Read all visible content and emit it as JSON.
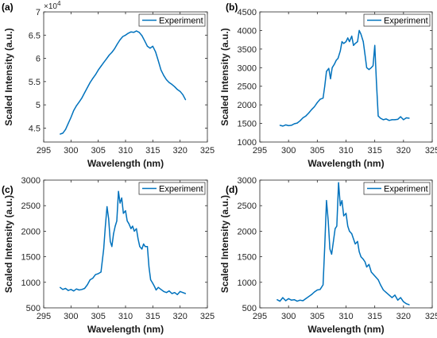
{
  "colors": {
    "series": "#0072BD",
    "axis": "#262626",
    "background": "#ffffff"
  },
  "chart_data": [
    {
      "type": "line",
      "panel_label": "(a)",
      "xlabel": "Wavelength (nm)",
      "ylabel": "Scaled Intensity (a.u.)",
      "xlim": [
        295,
        325
      ],
      "ylim": [
        42000,
        70000
      ],
      "xticks": [
        "295",
        "300",
        "305",
        "310",
        "315",
        "320",
        "325"
      ],
      "yticks": [
        {
          "value": 45000,
          "label": "4.5"
        },
        {
          "value": 50000,
          "label": "5"
        },
        {
          "value": 55000,
          "label": "5.5"
        },
        {
          "value": 60000,
          "label": "6"
        },
        {
          "value": 65000,
          "label": "6.5"
        },
        {
          "value": 70000,
          "label": "7"
        }
      ],
      "y_exponent": "×10",
      "y_exponent_power": "4",
      "legend": {
        "position": "top-right",
        "entries": [
          "Experiment"
        ]
      },
      "series": [
        {
          "name": "Experiment",
          "x": [
            298.0,
            298.5,
            299.0,
            299.5,
            300.0,
            300.5,
            301.0,
            301.5,
            302.0,
            302.5,
            303.0,
            303.5,
            304.0,
            304.5,
            305.0,
            305.5,
            306.0,
            306.5,
            307.0,
            307.5,
            308.0,
            308.5,
            309.0,
            309.5,
            310.0,
            310.5,
            311.0,
            311.5,
            312.0,
            312.5,
            313.0,
            313.5,
            314.0,
            314.5,
            315.0,
            315.5,
            316.0,
            316.5,
            317.0,
            317.5,
            318.0,
            318.5,
            319.0,
            319.5,
            320.0,
            320.5,
            321.0
          ],
          "y": [
            43700,
            43900,
            44700,
            46000,
            47300,
            48800,
            49800,
            50600,
            51500,
            52600,
            53700,
            54800,
            55700,
            56500,
            57500,
            58300,
            59100,
            59900,
            60700,
            61300,
            62100,
            63100,
            64000,
            64700,
            65000,
            65400,
            65700,
            65600,
            65900,
            65600,
            64900,
            63800,
            62600,
            62200,
            62600,
            61400,
            59500,
            57500,
            56300,
            55400,
            54800,
            54400,
            53900,
            53300,
            52900,
            52200,
            51100
          ]
        }
      ]
    },
    {
      "type": "line",
      "panel_label": "(b)",
      "xlabel": "Wavelength (nm)",
      "ylabel": "Scaled Intensity (a.u.)",
      "xlim": [
        295,
        325
      ],
      "ylim": [
        1000,
        4500
      ],
      "xticks": [
        "295",
        "300",
        "305",
        "310",
        "315",
        "320",
        "325"
      ],
      "yticks": [
        "1000",
        "1500",
        "2000",
        "2500",
        "3000",
        "3500",
        "4000",
        "4500"
      ],
      "legend": {
        "position": "top-right",
        "entries": [
          "Experiment"
        ]
      },
      "series": [
        {
          "name": "Experiment",
          "x": [
            298.5,
            299.0,
            299.5,
            300.0,
            300.5,
            301.0,
            301.5,
            302.0,
            302.5,
            303.0,
            303.5,
            304.0,
            304.5,
            305.0,
            305.5,
            306.0,
            306.3,
            306.6,
            307.0,
            307.3,
            307.6,
            308.0,
            308.3,
            308.6,
            309.0,
            309.3,
            309.6,
            310.0,
            310.3,
            310.6,
            311.0,
            311.3,
            311.6,
            312.0,
            312.3,
            312.6,
            313.0,
            313.3,
            313.6,
            314.0,
            314.4,
            314.7,
            315.0,
            315.3,
            315.6,
            316.0,
            316.5,
            317.0,
            317.5,
            318.0,
            318.5,
            319.0,
            319.5,
            320.0,
            320.5,
            321.0
          ],
          "y": [
            1450,
            1430,
            1460,
            1440,
            1450,
            1490,
            1510,
            1570,
            1650,
            1700,
            1780,
            1870,
            1950,
            2060,
            2150,
            2180,
            2500,
            2900,
            2980,
            2700,
            3000,
            3100,
            3200,
            3250,
            3450,
            3700,
            3650,
            3700,
            3800,
            3700,
            3850,
            3600,
            3650,
            3700,
            4000,
            3900,
            3700,
            3350,
            3000,
            2950,
            3000,
            3050,
            3600,
            2600,
            1700,
            1640,
            1600,
            1620,
            1580,
            1600,
            1600,
            1610,
            1680,
            1600,
            1650,
            1640
          ]
        }
      ]
    },
    {
      "type": "line",
      "panel_label": "(c)",
      "xlabel": "Wavelength (nm)",
      "ylabel": "Scaled Intensity (a.u.)",
      "xlim": [
        295,
        325
      ],
      "ylim": [
        500,
        3000
      ],
      "xticks": [
        "295",
        "300",
        "305",
        "310",
        "315",
        "320",
        "325"
      ],
      "yticks": [
        "500",
        "1000",
        "1500",
        "2000",
        "2500",
        "3000"
      ],
      "legend": {
        "position": "top-right",
        "entries": [
          "Experiment"
        ]
      },
      "series": [
        {
          "name": "Experiment",
          "x": [
            298.0,
            298.5,
            299.0,
            299.5,
            300.0,
            300.5,
            301.0,
            301.5,
            302.0,
            302.5,
            303.0,
            303.5,
            304.0,
            304.5,
            305.0,
            305.5,
            306.0,
            306.3,
            306.6,
            306.9,
            307.2,
            307.5,
            307.8,
            308.1,
            308.4,
            308.7,
            309.0,
            309.3,
            309.6,
            310.0,
            310.3,
            310.6,
            311.0,
            311.3,
            311.6,
            312.0,
            312.3,
            312.6,
            313.0,
            313.3,
            313.6,
            314.0,
            314.3,
            314.6,
            315.0,
            315.3,
            315.6,
            316.0,
            316.5,
            317.0,
            317.5,
            318.0,
            318.5,
            319.0,
            319.5,
            320.0,
            320.5,
            321.0
          ],
          "y": [
            900,
            860,
            880,
            840,
            860,
            830,
            870,
            850,
            860,
            880,
            950,
            1050,
            1080,
            1150,
            1170,
            1200,
            1650,
            2100,
            2480,
            2250,
            1800,
            1700,
            1950,
            2100,
            2200,
            2780,
            2550,
            2650,
            2350,
            2400,
            2200,
            2150,
            2050,
            2100,
            2000,
            2050,
            1850,
            1700,
            1650,
            1750,
            1700,
            1700,
            1300,
            1050,
            980,
            920,
            850,
            900,
            860,
            820,
            800,
            830,
            780,
            800,
            760,
            820,
            800,
            780
          ]
        }
      ]
    },
    {
      "type": "line",
      "panel_label": "(d)",
      "xlabel": "Wavelength (nm)",
      "ylabel": "Scaled Intensity (a.u.)",
      "xlim": [
        295,
        325
      ],
      "ylim": [
        500,
        3000
      ],
      "xticks": [
        "295",
        "300",
        "305",
        "310",
        "315",
        "320",
        "325"
      ],
      "yticks": [
        "500",
        "1000",
        "1500",
        "2000",
        "2500",
        "3000"
      ],
      "legend": {
        "position": "top-right",
        "entries": [
          "Experiment"
        ]
      },
      "series": [
        {
          "name": "Experiment",
          "x": [
            298.0,
            298.5,
            299.0,
            299.5,
            300.0,
            300.5,
            301.0,
            301.5,
            302.0,
            302.5,
            303.0,
            303.5,
            304.0,
            304.5,
            305.0,
            305.5,
            306.0,
            306.3,
            306.6,
            306.9,
            307.2,
            307.5,
            307.8,
            308.1,
            308.4,
            308.7,
            309.0,
            309.3,
            309.6,
            310.0,
            310.3,
            310.6,
            311.0,
            311.3,
            311.6,
            312.0,
            312.3,
            312.6,
            313.0,
            313.3,
            313.6,
            314.0,
            314.4,
            314.8,
            315.2,
            315.6,
            316.0,
            316.5,
            317.0,
            317.5,
            318.0,
            318.5,
            319.0,
            319.5,
            320.0,
            320.5,
            321.0
          ],
          "y": [
            660,
            630,
            700,
            640,
            680,
            650,
            660,
            630,
            650,
            640,
            680,
            720,
            760,
            810,
            850,
            860,
            950,
            1700,
            2600,
            2200,
            1650,
            1550,
            1800,
            2050,
            2100,
            2950,
            2500,
            2600,
            2300,
            2350,
            2100,
            2000,
            1950,
            1850,
            1750,
            1800,
            1600,
            1500,
            1450,
            1400,
            1300,
            1350,
            1200,
            1150,
            1100,
            1050,
            950,
            850,
            800,
            750,
            700,
            750,
            650,
            700,
            620,
            580,
            560
          ]
        }
      ]
    }
  ]
}
